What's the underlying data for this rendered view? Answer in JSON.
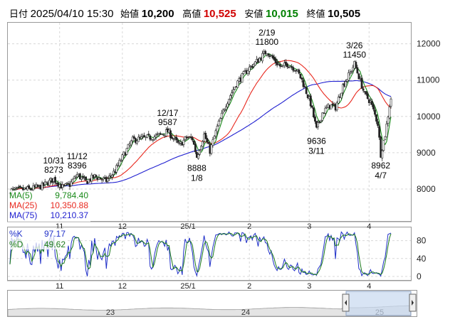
{
  "header": {
    "date_label": "日付",
    "date": "2025/04/10 15:30",
    "open_label": "始値",
    "open": "10,200",
    "high_label": "高値",
    "high": "10,525",
    "low_label": "安値",
    "low": "10,015",
    "close_label": "終値",
    "close": "10,505"
  },
  "colors": {
    "ma5": "#1a8a1a",
    "ma25": "#e8281e",
    "ma75": "#2020d0",
    "pk": "#2030c8",
    "pd": "#1a7a1a",
    "navigator_fill": "#c8d8f0"
  },
  "chart_data": [
    {
      "type": "candlestick",
      "y_axis": {
        "range": [
          7100,
          12600
        ],
        "ticks": [
          8000,
          9000,
          10000,
          11000,
          12000
        ],
        "position": "right"
      },
      "x_ticks": [
        "11",
        "12",
        "25/1",
        "2",
        "3",
        "4"
      ],
      "legend": [
        {
          "name": "MA(5)",
          "value": "9,784.40"
        },
        {
          "name": "MA(25)",
          "value": "10,350.88"
        },
        {
          "name": "MA(75)",
          "value": "10,210.37"
        }
      ],
      "annotations": [
        {
          "date": "10/31",
          "value": "8273"
        },
        {
          "date": "11/12",
          "value": "8396"
        },
        {
          "date": "12/17",
          "value": "9587"
        },
        {
          "date": "1/8",
          "value": "8888"
        },
        {
          "date": "2/19",
          "value": "11800"
        },
        {
          "date": "3/11",
          "value": "9636"
        },
        {
          "date": "3/26",
          "value": "11450"
        },
        {
          "date": "4/7",
          "value": "8962"
        }
      ],
      "price_path": [
        [
          0,
          7960
        ],
        [
          14,
          8000
        ],
        [
          22,
          8080
        ],
        [
          30,
          8273
        ],
        [
          36,
          8050
        ],
        [
          41,
          8120
        ],
        [
          46,
          8396
        ],
        [
          52,
          8200
        ],
        [
          58,
          8350
        ],
        [
          66,
          8230
        ],
        [
          72,
          8500
        ],
        [
          78,
          8950
        ],
        [
          84,
          9350
        ],
        [
          92,
          9400
        ],
        [
          100,
          9450
        ],
        [
          108,
          9587
        ],
        [
          116,
          9200
        ],
        [
          121,
          9420
        ],
        [
          125,
          9380
        ],
        [
          128,
          8888
        ],
        [
          133,
          9500
        ],
        [
          137,
          9050
        ],
        [
          142,
          9700
        ],
        [
          148,
          10350
        ],
        [
          155,
          10900
        ],
        [
          163,
          11300
        ],
        [
          170,
          11550
        ],
        [
          176,
          11800
        ],
        [
          182,
          11500
        ],
        [
          186,
          11350
        ],
        [
          190,
          11450
        ],
        [
          196,
          11300
        ],
        [
          200,
          11000
        ],
        [
          206,
          10350
        ],
        [
          210,
          9636
        ],
        [
          214,
          10100
        ],
        [
          219,
          10300
        ],
        [
          223,
          10250
        ],
        [
          228,
          10850
        ],
        [
          233,
          11200
        ],
        [
          236,
          11450
        ],
        [
          239,
          11100
        ],
        [
          243,
          10600
        ],
        [
          247,
          10400
        ],
        [
          252,
          9800
        ],
        [
          254,
          8962
        ],
        [
          257,
          9500
        ],
        [
          260,
          10300
        ],
        [
          261,
          10505
        ]
      ]
    },
    {
      "type": "line",
      "name": "stochastic",
      "y_axis": {
        "range": [
          0,
          100
        ],
        "ticks": [
          0,
          40,
          80
        ],
        "position": "right"
      },
      "x_ticks": [
        "11",
        "12",
        "25/1",
        "2",
        "3",
        "4"
      ],
      "legend": [
        {
          "name": "%K",
          "value": "97.17"
        },
        {
          "name": "%D",
          "value": "49.62"
        }
      ]
    },
    {
      "type": "area",
      "name": "navigator",
      "x_ticks": [
        "23",
        "24",
        "25"
      ]
    }
  ]
}
